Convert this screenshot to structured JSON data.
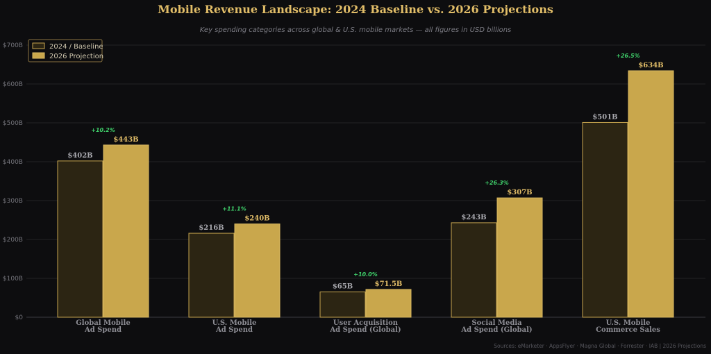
{
  "chart_data": {
    "type": "bar",
    "title": "Mobile Revenue Landscape: 2024 Baseline vs. 2026 Projections",
    "subtitle": "Key spending categories across global & U.S. mobile markets  —  all figures in USD billions",
    "categories": [
      [
        "Global Mobile",
        "Ad Spend"
      ],
      [
        "U.S. Mobile",
        "Ad Spend"
      ],
      [
        "User Acquisition",
        "Ad Spend (Global)"
      ],
      [
        "Social Media",
        "Ad Spend (Global)"
      ],
      [
        "U.S. Mobile",
        "Commerce Sales"
      ]
    ],
    "series": [
      {
        "name": "2024 / Baseline",
        "values": [
          402,
          216,
          65,
          243,
          501
        ],
        "labels": [
          "$402B",
          "$216B",
          "$65B",
          "$243B",
          "$501B"
        ],
        "color": "#2c2513",
        "edge": "#c7a54f"
      },
      {
        "name": "2026 Projection",
        "values": [
          443,
          240,
          71.5,
          307,
          634
        ],
        "labels": [
          "$443B",
          "$240B",
          "$71.5B",
          "$307B",
          "$634B"
        ],
        "color": "#c9a74c",
        "edge": "#d9b962"
      }
    ],
    "growth_labels": [
      "+10.2%",
      "+11.1%",
      "+10.0%",
      "+26.3%",
      "+26.5%"
    ],
    "ylim": [
      0,
      700
    ],
    "yticks": [
      0,
      100,
      200,
      300,
      400,
      500,
      600,
      700
    ],
    "ytick_labels": [
      "$0",
      "$100B",
      "$200B",
      "$300B",
      "$400B",
      "$500B",
      "$600B",
      "$700B"
    ],
    "xlabel": "",
    "ylabel": "",
    "grid": true,
    "legend_position": "top-left",
    "source_note": "Sources: eMarketer · AppsFlyer · Magna Global · Forrester · IAB  |  2026 Projections",
    "colors": {
      "background": "#0d0d0f",
      "grid": "#222226",
      "growth": "#3fcf6a",
      "title": "#e1bd68"
    }
  }
}
